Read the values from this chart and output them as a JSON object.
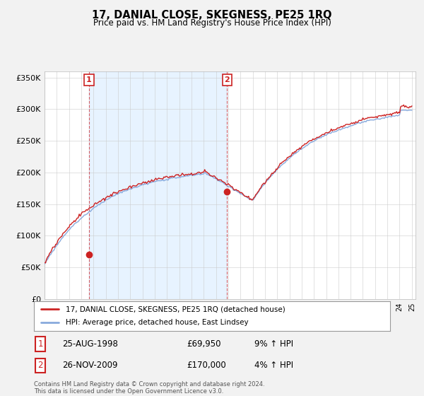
{
  "title": "17, DANIAL CLOSE, SKEGNESS, PE25 1RQ",
  "subtitle": "Price paid vs. HM Land Registry's House Price Index (HPI)",
  "ylim": [
    0,
    360000
  ],
  "yticks": [
    0,
    50000,
    100000,
    150000,
    200000,
    250000,
    300000,
    350000
  ],
  "ytick_labels": [
    "£0",
    "£50K",
    "£100K",
    "£150K",
    "£200K",
    "£250K",
    "£300K",
    "£350K"
  ],
  "background_color": "#f2f2f2",
  "plot_bg_color": "#ffffff",
  "shade_color": "#ddeeff",
  "grid_color": "#cccccc",
  "hpi_color": "#88aadd",
  "price_color": "#cc2222",
  "sale1_year": 1998.63,
  "sale1_price": 69950,
  "sale2_year": 2009.9,
  "sale2_price": 170000,
  "legend_line1": "17, DANIAL CLOSE, SKEGNESS, PE25 1RQ (detached house)",
  "legend_line2": "HPI: Average price, detached house, East Lindsey",
  "table_row1": [
    "1",
    "25-AUG-1998",
    "£69,950",
    "9% ↑ HPI"
  ],
  "table_row2": [
    "2",
    "26-NOV-2009",
    "£170,000",
    "4% ↑ HPI"
  ],
  "footer": "Contains HM Land Registry data © Crown copyright and database right 2024.\nThis data is licensed under the Open Government Licence v3.0."
}
